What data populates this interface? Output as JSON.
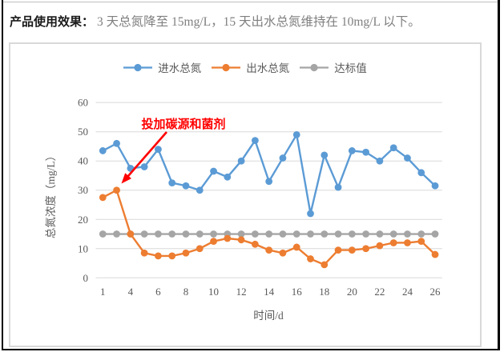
{
  "header": {
    "label": "产品使用效果：",
    "text": "3 天总氮降至 15mg/L，15 天出水总氮维持在 10mg/L 以下。"
  },
  "chart_data": {
    "type": "line",
    "title": "",
    "xlabel": "时间/d",
    "ylabel": "总氮浓度（mg/L）",
    "ylim": [
      0,
      60
    ],
    "yticks": [
      0,
      10,
      20,
      30,
      40,
      50,
      60
    ],
    "x_tick_labels": [
      "1",
      "4",
      "6",
      "8",
      "10",
      "12",
      "14",
      "16",
      "18",
      "20",
      "22",
      "24",
      "26"
    ],
    "x_tick_interval": 2,
    "grid": true,
    "legend_position": "top",
    "categories": [
      1,
      2,
      4,
      5,
      6,
      7,
      8,
      9,
      10,
      11,
      12,
      13,
      14,
      15,
      16,
      17,
      18,
      19,
      20,
      21,
      22,
      23,
      24,
      25,
      26
    ],
    "series": [
      {
        "name": "进水总氮",
        "color": "#5B9BD5",
        "marker": "circle",
        "values": [
          43.5,
          46,
          37.5,
          38,
          44,
          32.5,
          31.5,
          30,
          36.5,
          34.5,
          40,
          47,
          33,
          41,
          49,
          22,
          42,
          31,
          43.5,
          43,
          40,
          44.5,
          41,
          36,
          31.5
        ]
      },
      {
        "name": "出水总氮",
        "color": "#ED7D31",
        "marker": "circle",
        "values": [
          27.5,
          30,
          15,
          8.5,
          7.5,
          7.5,
          8.5,
          10,
          12.5,
          13.5,
          13,
          11.5,
          9.5,
          8.5,
          10.5,
          6.5,
          4.5,
          9.5,
          9.5,
          10,
          11,
          12,
          12,
          12.5,
          8
        ]
      },
      {
        "name": "达标值",
        "color": "#A5A5A5",
        "marker": "circle",
        "values": [
          15,
          15,
          15,
          15,
          15,
          15,
          15,
          15,
          15,
          15,
          15,
          15,
          15,
          15,
          15,
          15,
          15,
          15,
          15,
          15,
          15,
          15,
          15,
          15,
          15
        ]
      }
    ],
    "annotation": {
      "text": "投加碳源和菌剂",
      "color": "#FF0000"
    },
    "colors": {
      "gridline": "#D9D9D9",
      "axis_text": "#595959"
    }
  }
}
